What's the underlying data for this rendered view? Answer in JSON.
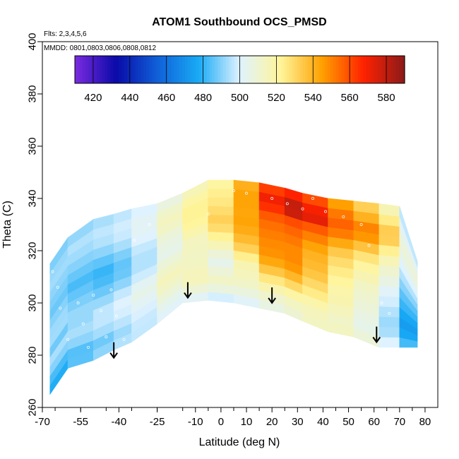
{
  "chart_data": {
    "type": "heatmap",
    "title": "ATOM1 Southbound OCS_PMSD",
    "flights_note": "Flts: 2,3,4,5,6",
    "dates_note": "MMDD: 0801,0803,0806,0808,0812",
    "xlabel": "Latitude (deg N)",
    "ylabel": "Theta (C)",
    "xlim": [
      -70,
      85
    ],
    "ylim": [
      260,
      400
    ],
    "x_tick_labels": [
      "-70",
      "-55",
      "-40",
      "-25",
      "-10",
      "0",
      "10",
      "20",
      "30",
      "40",
      "50",
      "60",
      "70",
      "80"
    ],
    "y_tick_labels": [
      "260",
      "280",
      "300",
      "320",
      "340",
      "360",
      "380",
      "400"
    ],
    "colorbar": {
      "tick_labels": [
        "420",
        "440",
        "460",
        "480",
        "500",
        "520",
        "540",
        "560",
        "580"
      ],
      "range": [
        410,
        590
      ],
      "colors": [
        "#7b2be0",
        "#0a0aa8",
        "#1060d8",
        "#18aaf5",
        "#dff2ff",
        "#fff59a",
        "#ffa000",
        "#ff2200",
        "#8b1a1a"
      ]
    },
    "surface": {
      "lat": [
        -67,
        -60,
        -50,
        -42,
        -35,
        -25,
        -15,
        -5,
        5,
        15,
        25,
        32,
        42,
        52,
        62,
        70,
        77
      ],
      "theta": [
        [
          265,
          315,
          0
        ],
        [
          275,
          325,
          0
        ],
        [
          278,
          332,
          0
        ],
        [
          282,
          334,
          0
        ],
        [
          285,
          336,
          0
        ],
        [
          292,
          338,
          0
        ],
        [
          300,
          342,
          0
        ],
        [
          301,
          347,
          0
        ],
        [
          300,
          347,
          0
        ],
        [
          298,
          346,
          0
        ],
        [
          296,
          344,
          0
        ],
        [
          293,
          342,
          0
        ],
        [
          289,
          340,
          0
        ],
        [
          287,
          339,
          0
        ],
        [
          283,
          338,
          0
        ],
        [
          283,
          337,
          0
        ],
        [
          283,
          316,
          0
        ]
      ],
      "values": [
        [
          475,
          482,
          490,
          495,
          485,
          492,
          493,
          490,
          488,
          490,
          492,
          494,
          490,
          488
        ],
        [
          482,
          484,
          490,
          493,
          490,
          494,
          492,
          490,
          486,
          488,
          490,
          492,
          494,
          490
        ],
        [
          488,
          485,
          492,
          495,
          494,
          490,
          486,
          482,
          480,
          485,
          490,
          494,
          496,
          493
        ],
        [
          494,
          490,
          495,
          498,
          499,
          494,
          488,
          484,
          482,
          486,
          492,
          496,
          497,
          495
        ],
        [
          496,
          495,
          497,
          500,
          502,
          500,
          494,
          490,
          490,
          492,
          496,
          499,
          500,
          498
        ],
        [
          498,
          500,
          502,
          505,
          508,
          506,
          502,
          500,
          500,
          502,
          505,
          506,
          505,
          502
        ],
        [
          505,
          508,
          515,
          520,
          522,
          518,
          515,
          510,
          512,
          515,
          520,
          522,
          518,
          512
        ],
        [
          500,
          510,
          515,
          510,
          505,
          508,
          512,
          518,
          524,
          528,
          526,
          524,
          522,
          520
        ],
        [
          498,
          505,
          510,
          508,
          504,
          510,
          520,
          528,
          534,
          536,
          532,
          528,
          526,
          522
        ],
        [
          505,
          510,
          515,
          522,
          530,
          538,
          545,
          548,
          550,
          552,
          555,
          560,
          562,
          560
        ],
        [
          508,
          512,
          520,
          530,
          540,
          548,
          550,
          550,
          552,
          555,
          560,
          570,
          578,
          565
        ],
        [
          512,
          515,
          520,
          530,
          538,
          545,
          548,
          548,
          552,
          556,
          560,
          585,
          580,
          570
        ],
        [
          515,
          515,
          518,
          520,
          522,
          525,
          528,
          532,
          536,
          545,
          555,
          560,
          558,
          550
        ],
        [
          512,
          510,
          512,
          515,
          516,
          518,
          522,
          526,
          532,
          540,
          548,
          552,
          546,
          540
        ],
        [
          505,
          500,
          500,
          502,
          505,
          508,
          512,
          516,
          522,
          532,
          545,
          548,
          535,
          525
        ],
        [
          495,
          488,
          485,
          488,
          492,
          495,
          500,
          505,
          510,
          515,
          520,
          518,
          515,
          508
        ],
        [
          470,
          465,
          462,
          465,
          470,
          475,
          480,
          485,
          490,
          495,
          498,
          495,
          490,
          485
        ]
      ]
    },
    "tropopause_arrows": [
      {
        "lat": -42,
        "theta": 279
      },
      {
        "lat": -13,
        "theta": 302
      },
      {
        "lat": 20,
        "theta": 300
      },
      {
        "lat": 61,
        "theta": 285
      }
    ],
    "sample_points": [
      {
        "lat": -66,
        "theta": 312
      },
      {
        "lat": -64,
        "theta": 306
      },
      {
        "lat": -63,
        "theta": 298
      },
      {
        "lat": -60,
        "theta": 286
      },
      {
        "lat": -56,
        "theta": 300
      },
      {
        "lat": -54,
        "theta": 292
      },
      {
        "lat": -52,
        "theta": 283
      },
      {
        "lat": -50,
        "theta": 303
      },
      {
        "lat": -47,
        "theta": 297
      },
      {
        "lat": -45,
        "theta": 287
      },
      {
        "lat": -43,
        "theta": 305
      },
      {
        "lat": -41,
        "theta": 295
      },
      {
        "lat": -38,
        "theta": 286
      },
      {
        "lat": -34,
        "theta": 324
      },
      {
        "lat": -28,
        "theta": 330
      },
      {
        "lat": -22,
        "theta": 340
      },
      {
        "lat": -18,
        "theta": 343
      },
      {
        "lat": -5,
        "theta": 334
      },
      {
        "lat": 5,
        "theta": 343
      },
      {
        "lat": 10,
        "theta": 342
      },
      {
        "lat": 20,
        "theta": 340
      },
      {
        "lat": 26,
        "theta": 338
      },
      {
        "lat": 32,
        "theta": 336
      },
      {
        "lat": 36,
        "theta": 340
      },
      {
        "lat": 41,
        "theta": 335
      },
      {
        "lat": 48,
        "theta": 333
      },
      {
        "lat": 55,
        "theta": 330
      },
      {
        "lat": 58,
        "theta": 322
      },
      {
        "lat": 63,
        "theta": 300
      },
      {
        "lat": 66,
        "theta": 296
      },
      {
        "lat": 74,
        "theta": 330
      },
      {
        "lat": 78,
        "theta": 312
      },
      {
        "lat": 78,
        "theta": 283
      }
    ]
  }
}
